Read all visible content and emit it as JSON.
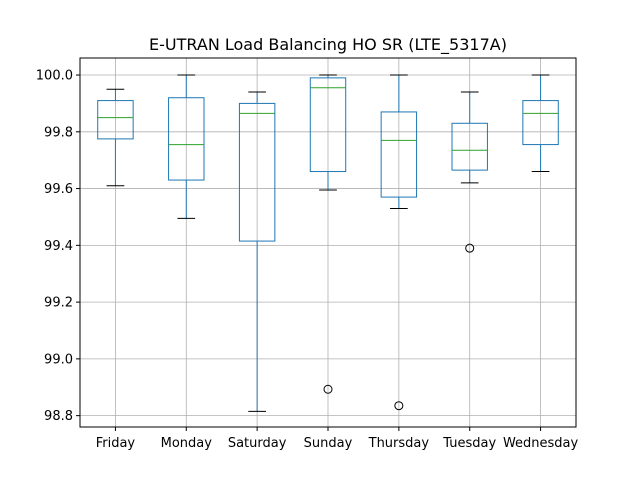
{
  "chart_data": {
    "type": "box",
    "title": "E-UTRAN Load Balancing HO SR (LTE_5317A)",
    "xlabel": "",
    "ylabel": "",
    "ylim": [
      98.76,
      100.06
    ],
    "yticks": [
      98.8,
      99.0,
      99.2,
      99.4,
      99.6,
      99.8,
      100.0
    ],
    "ytick_labels": [
      "98.8",
      "99.0",
      "99.2",
      "99.4",
      "99.6",
      "99.8",
      "100.0"
    ],
    "grid": true,
    "categories": [
      "Friday",
      "Monday",
      "Saturday",
      "Sunday",
      "Thursday",
      "Tuesday",
      "Wednesday"
    ],
    "boxes": [
      {
        "whisker_low": 99.61,
        "q1": 99.775,
        "median": 99.85,
        "q3": 99.91,
        "whisker_high": 99.95,
        "fliers": []
      },
      {
        "whisker_low": 99.495,
        "q1": 99.63,
        "median": 99.755,
        "q3": 99.92,
        "whisker_high": 100.0,
        "fliers": []
      },
      {
        "whisker_low": 98.815,
        "q1": 99.415,
        "median": 99.865,
        "q3": 99.9,
        "whisker_high": 99.94,
        "fliers": []
      },
      {
        "whisker_low": 99.595,
        "q1": 99.66,
        "median": 99.955,
        "q3": 99.99,
        "whisker_high": 100.0,
        "fliers": [
          98.893
        ]
      },
      {
        "whisker_low": 99.53,
        "q1": 99.57,
        "median": 99.77,
        "q3": 99.87,
        "whisker_high": 100.0,
        "fliers": [
          98.835
        ]
      },
      {
        "whisker_low": 99.62,
        "q1": 99.665,
        "median": 99.735,
        "q3": 99.83,
        "whisker_high": 99.94,
        "fliers": [
          99.39
        ]
      },
      {
        "whisker_low": 99.66,
        "q1": 99.755,
        "median": 99.865,
        "q3": 99.91,
        "whisker_high": 100.0,
        "fliers": []
      }
    ]
  }
}
